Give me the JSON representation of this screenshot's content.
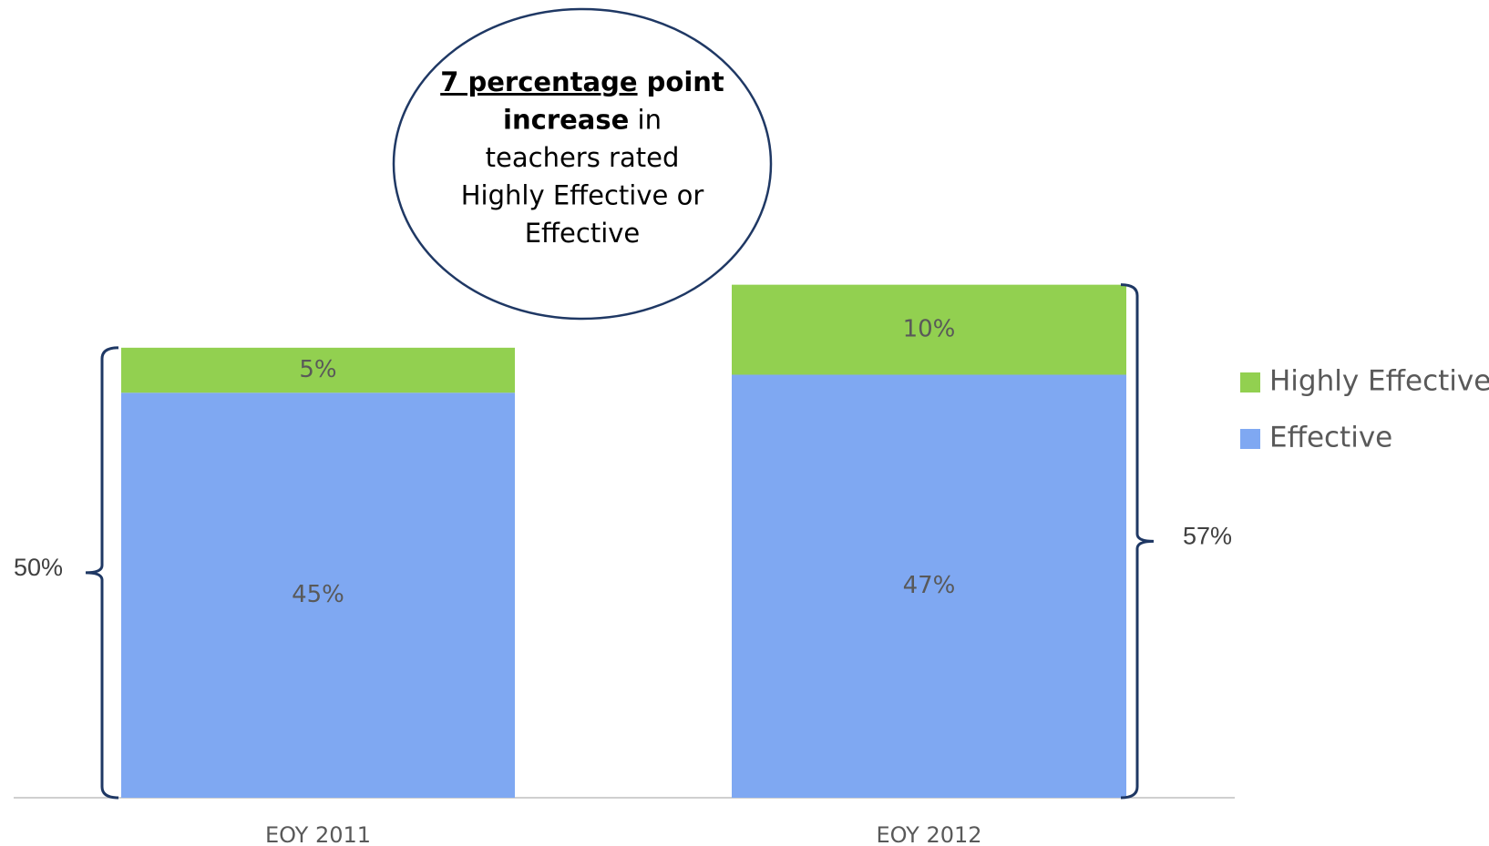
{
  "chart_data": {
    "type": "stacked_bar",
    "categories": [
      "EOY 2011",
      "EOY 2012"
    ],
    "series": [
      {
        "name": "Effective",
        "color": "#7fa8f2",
        "values": [
          45,
          47
        ],
        "value_labels": [
          "45%",
          "47%"
        ]
      },
      {
        "name": "Highly Effective",
        "color": "#92d050",
        "values": [
          5,
          10
        ],
        "value_labels": [
          "5%",
          "10%"
        ]
      }
    ],
    "totals": [
      50,
      57
    ],
    "total_labels": [
      "50%",
      "57%"
    ],
    "ylim": [
      0,
      60
    ],
    "annotation": [
      [
        {
          "text": "7 percentage",
          "bold": true,
          "underline": true
        },
        {
          "text": " point",
          "bold": true
        }
      ],
      [
        {
          "text": "increase",
          "bold": true
        },
        {
          "text": " in"
        }
      ],
      [
        {
          "text": "teachers rated"
        }
      ],
      [
        {
          "text": "Highly Effective or"
        }
      ],
      [
        {
          "text": "Effective"
        }
      ]
    ]
  }
}
